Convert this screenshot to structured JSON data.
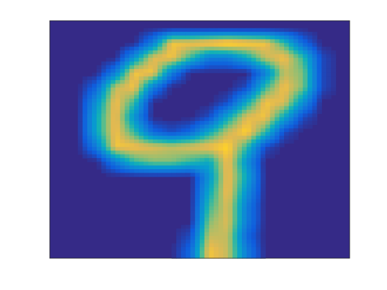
{
  "chart_data": {
    "type": "heatmap",
    "title": "",
    "xlabel": "",
    "ylabel": "",
    "axis_ticks": "none",
    "grid": false,
    "colorbar": false,
    "colormap": "parula",
    "smoothing": "gouraud-interpolated",
    "rows": 16,
    "cols": 16,
    "value_range": [
      0,
      1
    ],
    "colors": {
      "low": "#352a87",
      "mid_blue": "#1f83e0",
      "mid_teal": "#2db6c2",
      "mid_green": "#a5be6b",
      "high": "#f9fb0e"
    },
    "values": [
      [
        0,
        0,
        0,
        0,
        0,
        0,
        0,
        0,
        0,
        0,
        0,
        0,
        0,
        0,
        0,
        0
      ],
      [
        0,
        0,
        0,
        0,
        0,
        0.3,
        0.9,
        0.9,
        0.95,
        1,
        0.95,
        0.9,
        0.6,
        0.2,
        0,
        0
      ],
      [
        0,
        0,
        0,
        0,
        0.4,
        0.85,
        0.9,
        0.6,
        0.3,
        0.3,
        0.5,
        0.8,
        0.9,
        0.6,
        0.1,
        0
      ],
      [
        0,
        0,
        0,
        0.3,
        0.9,
        0.9,
        0.3,
        0,
        0,
        0,
        0,
        0.3,
        0.8,
        0.7,
        0.1,
        0
      ],
      [
        0,
        0,
        0.2,
        0.8,
        0.9,
        0.3,
        0,
        0,
        0,
        0,
        0.1,
        0.6,
        0.9,
        0.7,
        0.1,
        0
      ],
      [
        0,
        0,
        0.4,
        0.9,
        0.6,
        0,
        0,
        0,
        0,
        0.1,
        0.5,
        0.9,
        0.85,
        0.4,
        0,
        0
      ],
      [
        0,
        0,
        0.5,
        0.9,
        0.4,
        0,
        0,
        0,
        0.1,
        0.5,
        0.85,
        0.9,
        0.5,
        0.1,
        0,
        0
      ],
      [
        0,
        0,
        0.5,
        0.9,
        0.6,
        0.2,
        0.1,
        0.2,
        0.5,
        0.8,
        0.95,
        0.6,
        0.1,
        0,
        0,
        0
      ],
      [
        0,
        0,
        0.3,
        0.9,
        0.9,
        0.85,
        0.8,
        0.85,
        0.9,
        0.95,
        0.6,
        0.1,
        0,
        0,
        0,
        0
      ],
      [
        0,
        0,
        0,
        0.3,
        0.6,
        0.7,
        0.7,
        0.6,
        0.5,
        0.9,
        0.4,
        0,
        0,
        0,
        0,
        0
      ],
      [
        0,
        0,
        0,
        0,
        0,
        0,
        0,
        0,
        0.4,
        0.9,
        0.5,
        0,
        0,
        0,
        0,
        0
      ],
      [
        0,
        0,
        0,
        0,
        0,
        0,
        0,
        0,
        0.5,
        0.9,
        0.4,
        0,
        0,
        0,
        0,
        0
      ],
      [
        0,
        0,
        0,
        0,
        0,
        0,
        0,
        0,
        0.6,
        0.85,
        0.3,
        0,
        0,
        0,
        0,
        0
      ],
      [
        0,
        0,
        0,
        0,
        0,
        0,
        0,
        0,
        0.7,
        0.85,
        0.3,
        0,
        0,
        0,
        0,
        0
      ],
      [
        0,
        0,
        0,
        0,
        0,
        0,
        0,
        0.1,
        0.8,
        0.8,
        0.2,
        0,
        0,
        0,
        0,
        0
      ],
      [
        0,
        0,
        0,
        0,
        0,
        0,
        0,
        0.2,
        0.9,
        0.8,
        0.3,
        0,
        0,
        0,
        0,
        0
      ]
    ]
  }
}
